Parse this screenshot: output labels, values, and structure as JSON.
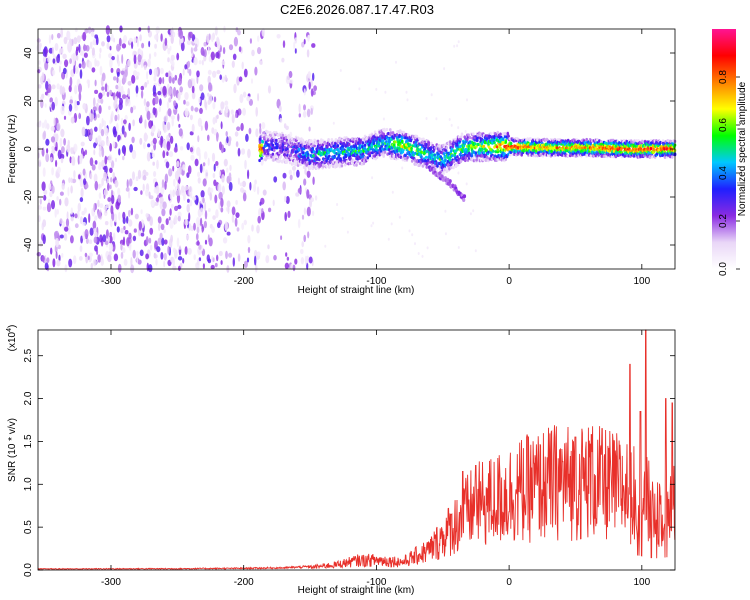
{
  "title": "C2E6.2026.087.17.47.R03",
  "colors": {
    "snr_line": "#e8302a",
    "axis": "#000000"
  },
  "chart_data": [
    {
      "type": "heatmap",
      "name": "spectrogram",
      "xlabel": "Height of straight line (km)",
      "ylabel": "Frequency (Hz)",
      "xlim": [
        -355,
        125
      ],
      "ylim": [
        -50,
        50
      ],
      "xticks": [
        -300,
        -200,
        -100,
        0,
        100
      ],
      "xtick_labels": [
        "-300",
        "-200",
        "-100",
        "0",
        "100"
      ],
      "yticks": [
        -40,
        -20,
        0,
        20,
        40
      ],
      "ytick_labels": [
        "-40",
        "-20",
        "0",
        "20",
        "40"
      ],
      "colorbar": {
        "label": "Normalized spectral amplitude",
        "range": [
          0,
          1
        ],
        "ticks": [
          0.0,
          0.2,
          0.4,
          0.6,
          0.8
        ],
        "tick_labels": [
          "0.0",
          "0.2",
          "0.4",
          "0.6",
          "0.8"
        ],
        "colormap": [
          "#ffffff",
          "#e9d6f7",
          "#8a2be2",
          "#1f1fff",
          "#00c8ff",
          "#00ff00",
          "#ffff00",
          "#ff8000",
          "#ff0000",
          "#ff1493"
        ]
      },
      "regions": {
        "noise_x_range": [
          -355,
          -145
        ],
        "signal_track": [
          {
            "x": -185,
            "y": 1.5,
            "amp": 0.35
          },
          {
            "x": -170,
            "y": 0.5,
            "amp": 0.3
          },
          {
            "x": -150,
            "y": -2.5,
            "amp": 0.45
          },
          {
            "x": -130,
            "y": -1.5,
            "amp": 0.5
          },
          {
            "x": -110,
            "y": -0.5,
            "amp": 0.5
          },
          {
            "x": -95,
            "y": 2.5,
            "amp": 0.5
          },
          {
            "x": -80,
            "y": 1.5,
            "amp": 0.7
          },
          {
            "x": -65,
            "y": -1.5,
            "amp": 0.55
          },
          {
            "x": -50,
            "y": -4.5,
            "amp": 0.5
          },
          {
            "x": -35,
            "y": 0.5,
            "amp": 0.6
          },
          {
            "x": -20,
            "y": 1.0,
            "amp": 0.65
          },
          {
            "x": 0,
            "y": 1.0,
            "amp": 0.85
          },
          {
            "x": 30,
            "y": 0.5,
            "amp": 0.75
          },
          {
            "x": 60,
            "y": 0.5,
            "amp": 0.8
          },
          {
            "x": 90,
            "y": 0.0,
            "amp": 0.9
          },
          {
            "x": 125,
            "y": 0.0,
            "amp": 0.85
          }
        ],
        "branch": [
          {
            "x": -60,
            "y": -8
          },
          {
            "x": -45,
            "y": -14
          },
          {
            "x": -33,
            "y": -21
          }
        ]
      }
    },
    {
      "type": "line",
      "name": "snr",
      "xlabel": "Height of straight line (km)",
      "ylabel": "SNR (10 * v/v)",
      "exponent_label": "(x10",
      "exponent_power": "4",
      "exponent_close": ")",
      "xlim": [
        -355,
        125
      ],
      "ylim": [
        0,
        28000
      ],
      "xticks": [
        -300,
        -200,
        -100,
        0,
        100
      ],
      "xtick_labels": [
        "-300",
        "-200",
        "-100",
        "0",
        "100"
      ],
      "yticks": [
        0,
        5000,
        10000,
        15000,
        20000,
        25000
      ],
      "ytick_labels": [
        "0.0",
        "0.5",
        "1.0",
        "1.5",
        "2.0",
        "2.5"
      ],
      "envelope": {
        "x": [
          -355,
          -250,
          -200,
          -170,
          -150,
          -130,
          -115,
          -100,
          -80,
          -60,
          -50,
          -40,
          -30,
          -20,
          -10,
          0,
          10,
          20,
          30,
          40,
          50,
          60,
          70,
          80,
          90,
          100,
          110,
          120,
          125
        ],
        "y": [
          120,
          150,
          200,
          250,
          400,
          800,
          1400,
          1500,
          1200,
          3000,
          5000,
          7000,
          9000,
          10000,
          10500,
          11500,
          12000,
          12500,
          13000,
          13500,
          13000,
          13500,
          13000,
          12500,
          12000,
          11000,
          9000,
          10000,
          9500
        ]
      },
      "peaks": [
        {
          "x": 103,
          "y": 28000
        },
        {
          "x": 91,
          "y": 24000
        },
        {
          "x": 118,
          "y": 20000
        },
        {
          "x": 99,
          "y": 18500
        },
        {
          "x": 123,
          "y": 19500
        },
        {
          "x": -35,
          "y": 11500
        },
        {
          "x": -25,
          "y": 12200
        },
        {
          "x": 70,
          "y": 16500
        },
        {
          "x": 50,
          "y": 15500
        },
        {
          "x": 62,
          "y": 15800
        }
      ]
    }
  ]
}
